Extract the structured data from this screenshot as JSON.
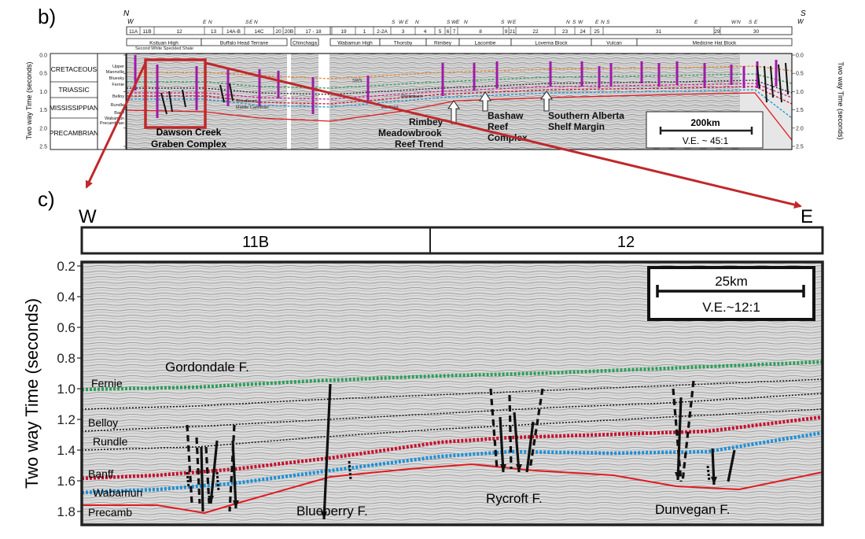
{
  "panel_b": {
    "label": "b)",
    "compass": {
      "north": "N",
      "south": "S",
      "west_left": "W",
      "west_right": "W"
    },
    "top_segments": [
      "11A",
      "11B",
      "12",
      "13",
      "14A-B",
      "14C",
      "20",
      "20B",
      "17 - 18",
      "19",
      "1",
      "2-2A",
      "3",
      "4",
      "5",
      "6",
      "7",
      "8",
      "9",
      "21",
      "22",
      "23",
      "24",
      "25",
      "31",
      "29",
      "30"
    ],
    "edge_labels": [
      "E",
      "N",
      "S",
      "E",
      "N",
      "S",
      "W",
      "E",
      "N",
      "S",
      "W",
      "E",
      "N",
      "S",
      "W",
      "E",
      "N",
      "S",
      "W",
      "E",
      "N",
      "S",
      "E",
      "W",
      "N",
      "S",
      "E"
    ],
    "domains": [
      "Ksituan High",
      "Buffalo Head Terrane",
      "Chinchaga",
      "Wabamun High",
      "Thorsby",
      "Rimbey",
      "Lacombe",
      "Loverna Block",
      "Vulcan",
      "Medicine Hat Block"
    ],
    "y_axis_label": "Two way Time (seconds)",
    "y_ticks": [
      "0.0",
      "0.5",
      "1.0",
      "1.5",
      "2.0",
      "2.5"
    ],
    "ages": [
      "CRETACEOUS",
      "TRIASSIC",
      "MISSISSIPPIAN",
      "PRECAMBRIAN"
    ],
    "units": [
      "Upper Mannville",
      "Bluesky",
      "Fernie",
      "Belloy",
      "Rundle",
      "Banff",
      "Wabamun",
      "Precambrian"
    ],
    "small_note": "Second White Speckled Shale",
    "features": [
      "Dawson Creek Graben Complex",
      "Rimbey Meadowbrook Reef Trend",
      "Bashaw Reef Complex",
      "Southern Alberta Shelf Margin"
    ],
    "scale": "200km",
    "ve": "V.E. ~ 45:1"
  },
  "panel_c": {
    "label": "c)",
    "west": "W",
    "east": "E",
    "blocks": [
      "11B",
      "12"
    ],
    "y_axis_label": "Two way Time (seconds)",
    "y_ticks": [
      "0.2",
      "0.4",
      "0.6",
      "0.8",
      "1.0",
      "1.2",
      "1.4",
      "1.6",
      "1.8"
    ],
    "horizons": [
      {
        "name": "Fernie",
        "color": "#2e9e5b"
      },
      {
        "name": "Belloy",
        "color": "#111111"
      },
      {
        "name": "Rundle",
        "color": "#111111"
      },
      {
        "name": "Banff",
        "color": "#c8102e"
      },
      {
        "name": "Wabamun",
        "color": "#1e90d6"
      },
      {
        "name": "Precamb",
        "color": "#e0191f"
      }
    ],
    "faults": [
      "Gordondale F.",
      "Blueberry F.",
      "Rycroft F.",
      "Dunvegan F."
    ],
    "scale": "25km",
    "ve": "V.E.~12:1"
  },
  "colors": {
    "arrow": "#c0282c",
    "box": "#c0282c"
  }
}
